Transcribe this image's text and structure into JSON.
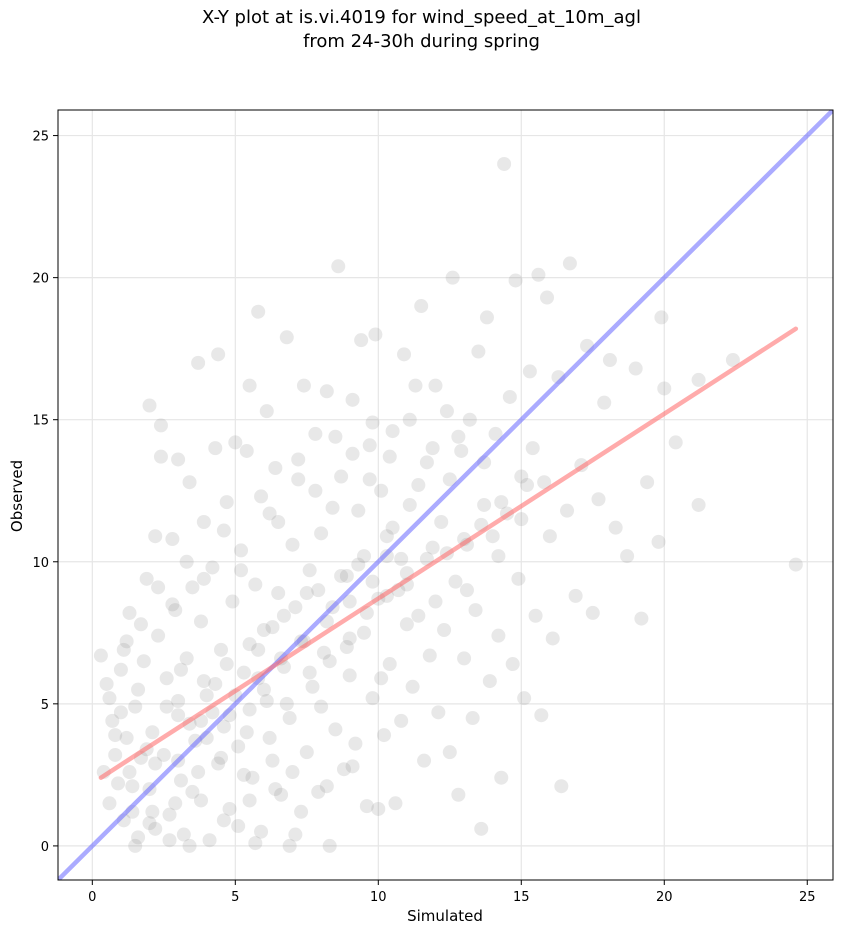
{
  "chart_data": {
    "type": "scatter",
    "title_lines": [
      "X-Y plot at is.vi.4019 for wind_speed_at_10m_agl",
      "from 24-30h during spring"
    ],
    "xlabel": "Simulated",
    "ylabel": "Observed",
    "xlim": [
      -1.2,
      25.9
    ],
    "ylim": [
      -1.2,
      25.9
    ],
    "xticks": [
      0,
      5,
      10,
      15,
      20,
      25
    ],
    "yticks": [
      0,
      5,
      10,
      15,
      20,
      25
    ],
    "grid": true,
    "point_color": "#808080",
    "point_opacity": 0.18,
    "series": [
      {
        "values": [
          [
            0.3,
            6.7
          ],
          [
            0.4,
            2.6
          ],
          [
            0.5,
            5.7
          ],
          [
            0.7,
            4.4
          ],
          [
            0.8,
            3.2
          ],
          [
            0.6,
            1.5
          ],
          [
            0.9,
            2.2
          ],
          [
            1.0,
            6.2
          ],
          [
            1.1,
            0.9
          ],
          [
            1.2,
            3.8
          ],
          [
            1.2,
            7.2
          ],
          [
            1.3,
            8.2
          ],
          [
            1.3,
            2.6
          ],
          [
            1.4,
            1.2
          ],
          [
            1.5,
            4.9
          ],
          [
            1.6,
            5.5
          ],
          [
            1.6,
            0.3
          ],
          [
            1.7,
            3.1
          ],
          [
            1.8,
            6.5
          ],
          [
            1.9,
            9.4
          ],
          [
            2.0,
            2.0
          ],
          [
            2.0,
            15.5
          ],
          [
            2.1,
            4.0
          ],
          [
            2.2,
            10.9
          ],
          [
            2.2,
            0.6
          ],
          [
            2.3,
            7.4
          ],
          [
            2.4,
            13.7
          ],
          [
            2.4,
            14.8
          ],
          [
            2.5,
            3.2
          ],
          [
            2.6,
            5.9
          ],
          [
            2.7,
            1.1
          ],
          [
            2.8,
            10.8
          ],
          [
            2.9,
            8.3
          ],
          [
            3.0,
            13.6
          ],
          [
            3.0,
            4.6
          ],
          [
            3.1,
            2.3
          ],
          [
            3.2,
            0.4
          ],
          [
            3.3,
            6.6
          ],
          [
            3.4,
            12.8
          ],
          [
            3.5,
            9.1
          ],
          [
            3.6,
            3.7
          ],
          [
            3.7,
            17.0
          ],
          [
            3.8,
            1.6
          ],
          [
            3.8,
            7.9
          ],
          [
            3.9,
            11.4
          ],
          [
            4.0,
            5.3
          ],
          [
            4.1,
            0.2
          ],
          [
            4.2,
            9.8
          ],
          [
            4.3,
            14.0
          ],
          [
            4.4,
            17.3
          ],
          [
            4.4,
            2.9
          ],
          [
            4.5,
            6.9
          ],
          [
            4.6,
            4.2
          ],
          [
            4.7,
            12.1
          ],
          [
            4.8,
            1.3
          ],
          [
            4.9,
            8.6
          ],
          [
            5.0,
            14.2
          ],
          [
            5.1,
            3.5
          ],
          [
            5.1,
            0.7
          ],
          [
            5.2,
            10.4
          ],
          [
            5.3,
            6.1
          ],
          [
            5.4,
            13.9
          ],
          [
            5.5,
            4.8
          ],
          [
            5.5,
            16.2
          ],
          [
            5.6,
            2.4
          ],
          [
            5.7,
            9.2
          ],
          [
            5.8,
            18.8
          ],
          [
            5.9,
            0.5
          ],
          [
            6.0,
            7.6
          ],
          [
            6.1,
            15.3
          ],
          [
            6.1,
            5.1
          ],
          [
            6.2,
            11.7
          ],
          [
            6.3,
            3.0
          ],
          [
            6.4,
            13.3
          ],
          [
            6.5,
            8.9
          ],
          [
            6.6,
            1.8
          ],
          [
            6.7,
            6.3
          ],
          [
            6.8,
            17.9
          ],
          [
            6.9,
            4.5
          ],
          [
            7.0,
            10.6
          ],
          [
            7.1,
            0.4
          ],
          [
            7.2,
            12.9
          ],
          [
            7.3,
            7.2
          ],
          [
            7.4,
            16.2
          ],
          [
            7.5,
            3.3
          ],
          [
            7.6,
            9.7
          ],
          [
            7.7,
            5.6
          ],
          [
            7.8,
            14.5
          ],
          [
            7.9,
            1.9
          ],
          [
            8.0,
            11.0
          ],
          [
            8.1,
            6.8
          ],
          [
            8.2,
            16.0
          ],
          [
            8.3,
            0.0
          ],
          [
            8.4,
            8.4
          ],
          [
            8.5,
            4.1
          ],
          [
            8.6,
            20.4
          ],
          [
            8.7,
            13.0
          ],
          [
            8.8,
            2.7
          ],
          [
            8.9,
            9.5
          ],
          [
            9.0,
            6.0
          ],
          [
            9.1,
            15.7
          ],
          [
            9.2,
            3.6
          ],
          [
            9.3,
            11.8
          ],
          [
            9.4,
            17.8
          ],
          [
            9.5,
            7.5
          ],
          [
            9.6,
            1.4
          ],
          [
            9.7,
            14.1
          ],
          [
            9.8,
            5.2
          ],
          [
            9.9,
            18.0
          ],
          [
            10.0,
            8.7
          ],
          [
            10.1,
            12.5
          ],
          [
            10.2,
            3.9
          ],
          [
            10.3,
            10.2
          ],
          [
            10.4,
            6.4
          ],
          [
            10.5,
            14.6
          ],
          [
            10.6,
            1.5
          ],
          [
            10.7,
            9.0
          ],
          [
            10.8,
            4.4
          ],
          [
            10.9,
            17.3
          ],
          [
            11.0,
            7.8
          ],
          [
            11.1,
            12.0
          ],
          [
            11.2,
            5.6
          ],
          [
            11.3,
            16.2
          ],
          [
            11.4,
            8.1
          ],
          [
            11.5,
            19.0
          ],
          [
            11.6,
            3.0
          ],
          [
            11.7,
            13.5
          ],
          [
            11.8,
            6.7
          ],
          [
            11.9,
            10.5
          ],
          [
            12.0,
            16.2
          ],
          [
            12.1,
            4.7
          ],
          [
            12.2,
            11.4
          ],
          [
            12.3,
            7.6
          ],
          [
            12.4,
            15.3
          ],
          [
            12.5,
            3.3
          ],
          [
            12.6,
            20.0
          ],
          [
            12.7,
            9.3
          ],
          [
            12.8,
            1.8
          ],
          [
            12.9,
            13.9
          ],
          [
            13.0,
            6.6
          ],
          [
            13.1,
            10.6
          ],
          [
            13.2,
            15.0
          ],
          [
            13.3,
            4.5
          ],
          [
            13.4,
            8.3
          ],
          [
            13.5,
            17.4
          ],
          [
            13.6,
            0.6
          ],
          [
            13.7,
            12.0
          ],
          [
            13.8,
            18.6
          ],
          [
            13.9,
            5.8
          ],
          [
            14.0,
            10.9
          ],
          [
            14.1,
            14.5
          ],
          [
            14.2,
            7.4
          ],
          [
            14.3,
            2.4
          ],
          [
            14.4,
            24.0
          ],
          [
            14.5,
            11.7
          ],
          [
            14.6,
            15.8
          ],
          [
            14.7,
            6.4
          ],
          [
            14.8,
            19.9
          ],
          [
            14.9,
            9.4
          ],
          [
            15.0,
            13.0
          ],
          [
            15.1,
            5.2
          ],
          [
            15.3,
            16.7
          ],
          [
            15.5,
            8.1
          ],
          [
            15.6,
            20.1
          ],
          [
            15.7,
            4.6
          ],
          [
            15.8,
            12.8
          ],
          [
            15.9,
            19.3
          ],
          [
            16.1,
            7.3
          ],
          [
            16.3,
            16.5
          ],
          [
            16.4,
            2.1
          ],
          [
            16.6,
            11.8
          ],
          [
            16.7,
            20.5
          ],
          [
            16.9,
            8.8
          ],
          [
            17.1,
            13.4
          ],
          [
            17.3,
            17.6
          ],
          [
            17.5,
            8.2
          ],
          [
            17.7,
            12.2
          ],
          [
            17.9,
            15.6
          ],
          [
            18.1,
            17.1
          ],
          [
            18.3,
            11.2
          ],
          [
            18.7,
            10.2
          ],
          [
            19.0,
            16.8
          ],
          [
            19.2,
            8.0
          ],
          [
            19.4,
            12.8
          ],
          [
            19.8,
            10.7
          ],
          [
            19.9,
            18.6
          ],
          [
            20.0,
            16.1
          ],
          [
            20.4,
            14.2
          ],
          [
            21.2,
            16.4
          ],
          [
            21.2,
            12.0
          ],
          [
            22.4,
            17.1
          ],
          [
            24.6,
            9.9
          ],
          [
            1.5,
            0.0
          ],
          [
            2.7,
            0.2
          ],
          [
            3.4,
            0.0
          ],
          [
            5.7,
            0.1
          ],
          [
            6.9,
            0.0
          ],
          [
            0.8,
            3.9
          ],
          [
            1.0,
            4.7
          ],
          [
            1.9,
            3.4
          ],
          [
            2.1,
            1.2
          ],
          [
            2.6,
            4.9
          ],
          [
            3.1,
            6.2
          ],
          [
            3.5,
            1.9
          ],
          [
            4.0,
            3.8
          ],
          [
            4.3,
            5.7
          ],
          [
            4.8,
            4.6
          ],
          [
            5.3,
            2.5
          ],
          [
            5.8,
            6.9
          ],
          [
            6.2,
            3.8
          ],
          [
            6.7,
            8.1
          ],
          [
            7.0,
            2.6
          ],
          [
            7.5,
            8.9
          ],
          [
            8.0,
            4.9
          ],
          [
            8.4,
            11.9
          ],
          [
            8.9,
            7.0
          ],
          [
            9.3,
            9.9
          ],
          [
            9.7,
            12.9
          ],
          [
            10.1,
            5.9
          ],
          [
            10.5,
            11.2
          ],
          [
            11.0,
            9.6
          ],
          [
            11.4,
            12.7
          ],
          [
            12.0,
            8.6
          ],
          [
            12.5,
            12.9
          ],
          [
            13.1,
            9.0
          ],
          [
            13.7,
            13.5
          ],
          [
            14.2,
            10.2
          ],
          [
            15.0,
            11.5
          ],
          [
            15.4,
            14.0
          ],
          [
            16.0,
            10.9
          ],
          [
            0.6,
            5.2
          ],
          [
            1.1,
            6.9
          ],
          [
            1.7,
            7.8
          ],
          [
            2.3,
            9.1
          ],
          [
            2.8,
            8.5
          ],
          [
            3.3,
            10.0
          ],
          [
            3.9,
            9.4
          ],
          [
            4.6,
            11.1
          ],
          [
            5.2,
            9.7
          ],
          [
            5.9,
            12.3
          ],
          [
            6.5,
            11.4
          ],
          [
            7.2,
            13.6
          ],
          [
            7.8,
            12.5
          ],
          [
            8.5,
            14.4
          ],
          [
            9.1,
            13.8
          ],
          [
            9.8,
            14.9
          ],
          [
            10.4,
            13.7
          ],
          [
            11.1,
            15.0
          ],
          [
            11.9,
            14.0
          ],
          [
            12.8,
            14.4
          ],
          [
            2.0,
            0.8
          ],
          [
            2.9,
            1.5
          ],
          [
            3.7,
            2.6
          ],
          [
            4.6,
            0.9
          ],
          [
            5.5,
            1.6
          ],
          [
            6.4,
            2.0
          ],
          [
            7.3,
            1.2
          ],
          [
            8.2,
            2.1
          ],
          [
            9.1,
            2.8
          ],
          [
            10.0,
            1.3
          ],
          [
            1.4,
            2.1
          ],
          [
            2.2,
            2.9
          ],
          [
            3.0,
            3.0
          ],
          [
            3.8,
            4.4
          ],
          [
            4.5,
            3.1
          ],
          [
            5.4,
            4.0
          ],
          [
            6.0,
            5.5
          ],
          [
            6.8,
            5.0
          ],
          [
            7.6,
            6.1
          ],
          [
            8.3,
            6.5
          ],
          [
            9.0,
            7.3
          ],
          [
            9.6,
            8.2
          ],
          [
            10.3,
            8.8
          ],
          [
            11.0,
            9.2
          ],
          [
            11.7,
            10.1
          ],
          [
            12.4,
            10.3
          ],
          [
            13.0,
            10.8
          ],
          [
            13.6,
            11.3
          ],
          [
            14.3,
            12.1
          ],
          [
            15.2,
            12.7
          ],
          [
            3.0,
            5.1
          ],
          [
            3.4,
            4.3
          ],
          [
            3.9,
            5.8
          ],
          [
            4.2,
            4.7
          ],
          [
            4.7,
            6.4
          ],
          [
            5.0,
            5.3
          ],
          [
            5.5,
            7.1
          ],
          [
            5.8,
            5.9
          ],
          [
            6.3,
            7.7
          ],
          [
            6.6,
            6.6
          ],
          [
            7.1,
            8.4
          ],
          [
            7.4,
            7.2
          ],
          [
            7.9,
            9.0
          ],
          [
            8.2,
            7.9
          ],
          [
            8.7,
            9.5
          ],
          [
            9.0,
            8.6
          ],
          [
            9.5,
            10.2
          ],
          [
            9.8,
            9.3
          ],
          [
            10.3,
            10.9
          ],
          [
            10.8,
            10.1
          ]
        ]
      }
    ],
    "reference_lines": [
      {
        "kind": "one_to_one",
        "color": "#6666ff",
        "opacity": 0.55,
        "x": [
          -1.2,
          25.9
        ],
        "y": [
          -1.2,
          25.9
        ]
      },
      {
        "kind": "regression_fit",
        "color": "#ff6666",
        "opacity": 0.55,
        "x": [
          0.3,
          24.6
        ],
        "y": [
          2.4,
          18.2
        ]
      }
    ]
  }
}
